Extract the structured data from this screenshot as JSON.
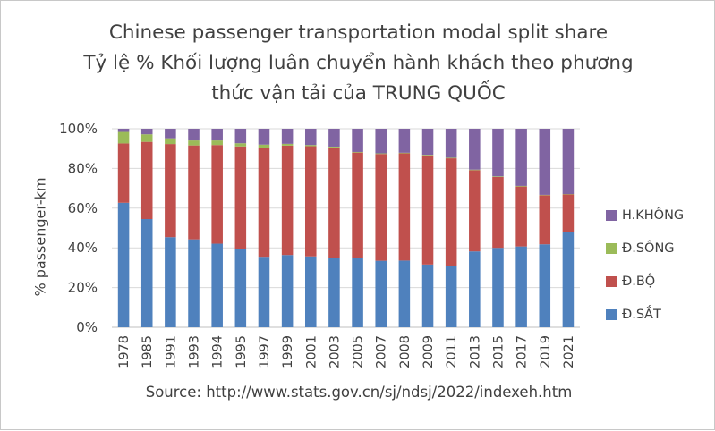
{
  "chart_data": {
    "type": "bar",
    "stacked": true,
    "title": "Chinese passenger transportation modal split share",
    "subtitle_line1": "Tỷ lệ % Khối lượng luân chuyển hành khách theo phương",
    "subtitle_line2": "thức vận tải của TRUNG QUỐC",
    "ylabel": "% passenger-km",
    "xlabel": "",
    "source": "Source: http://www.stats.gov.cn/sj/ndsj/2022/indexeh.htm",
    "ylim": [
      0,
      100
    ],
    "yticks": [
      0,
      20,
      40,
      60,
      80,
      100
    ],
    "ytick_labels": [
      "0%",
      "20%",
      "40%",
      "60%",
      "80%",
      "100%"
    ],
    "legend_position": "right",
    "categories": [
      "1978",
      "1985",
      "1991",
      "1993",
      "1994",
      "1995",
      "1997",
      "1999",
      "2001",
      "2003",
      "2005",
      "2007",
      "2008",
      "2009",
      "2011",
      "2013",
      "2015",
      "2017",
      "2019",
      "2021"
    ],
    "series": [
      {
        "name": "Đ.SẮT",
        "color": "#4F81BD",
        "values": [
          62.7,
          54.5,
          45.4,
          44.3,
          42.1,
          39.5,
          35.5,
          36.4,
          35.7,
          34.7,
          34.7,
          33.5,
          33.6,
          31.6,
          30.9,
          38.2,
          40.0,
          40.7,
          41.8,
          48.0
        ]
      },
      {
        "name": "Đ.BỘ",
        "color": "#C0504D",
        "values": [
          29.9,
          38.9,
          46.9,
          47.3,
          49.7,
          51.6,
          55.0,
          55.1,
          55.5,
          55.9,
          53.3,
          53.8,
          54.0,
          55.0,
          54.2,
          40.9,
          35.7,
          30.2,
          24.7,
          18.9
        ]
      },
      {
        "name": "Đ.SÔNG",
        "color": "#9BBB59",
        "values": [
          5.8,
          3.8,
          2.9,
          2.5,
          2.3,
          1.6,
          1.5,
          0.9,
          0.6,
          0.4,
          0.3,
          0.3,
          0.3,
          0.3,
          0.3,
          0.3,
          0.3,
          0.3,
          0.2,
          0.2
        ]
      },
      {
        "name": "H.KHÔNG",
        "color": "#8064A2",
        "values": [
          1.6,
          2.8,
          4.8,
          5.9,
          5.9,
          7.3,
          8.0,
          7.6,
          8.2,
          9.0,
          11.7,
          12.4,
          12.1,
          13.1,
          14.6,
          20.6,
          24.0,
          28.8,
          33.3,
          32.9
        ]
      }
    ],
    "legend_order": [
      "H.KHÔNG",
      "Đ.SÔNG",
      "Đ.BỘ",
      "Đ.SẮT"
    ]
  }
}
